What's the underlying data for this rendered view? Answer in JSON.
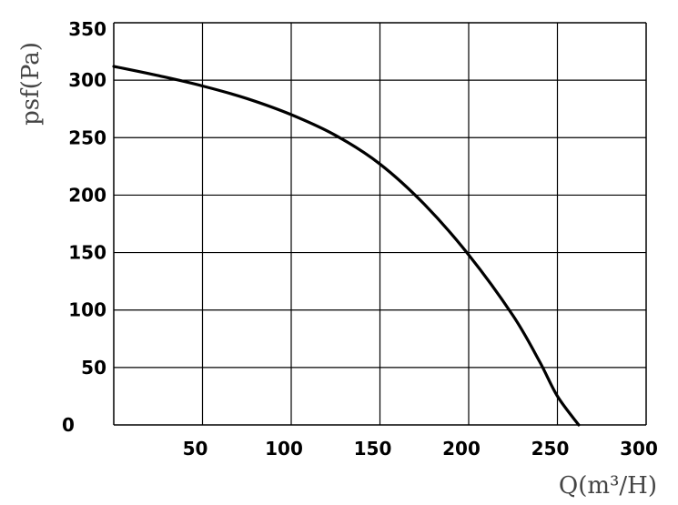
{
  "chart_data": {
    "type": "line",
    "title": "",
    "xlabel": "Q(m³/H)",
    "ylabel": "psf(Pa)",
    "xlim": [
      0,
      300
    ],
    "ylim": [
      0,
      350
    ],
    "x_ticks": [
      50,
      100,
      150,
      200,
      250,
      300
    ],
    "y_ticks": [
      0,
      50,
      100,
      150,
      200,
      250,
      300,
      350
    ],
    "x_tick_labels": [
      "50",
      "100",
      "150",
      "200",
      "250",
      "300"
    ],
    "y_tick_labels": [
      "0",
      "50",
      "100",
      "150",
      "200",
      "250",
      "300",
      "350"
    ],
    "grid": true,
    "legend": "none",
    "line_color": "#000000",
    "series": [
      {
        "x": [
          0,
          25,
          50,
          75,
          100,
          125,
          150,
          175,
          200,
          225,
          240,
          250,
          262
        ],
        "y": [
          312,
          304,
          295,
          284,
          270,
          252,
          227,
          192,
          148,
          95,
          55,
          25,
          0
        ]
      }
    ]
  }
}
